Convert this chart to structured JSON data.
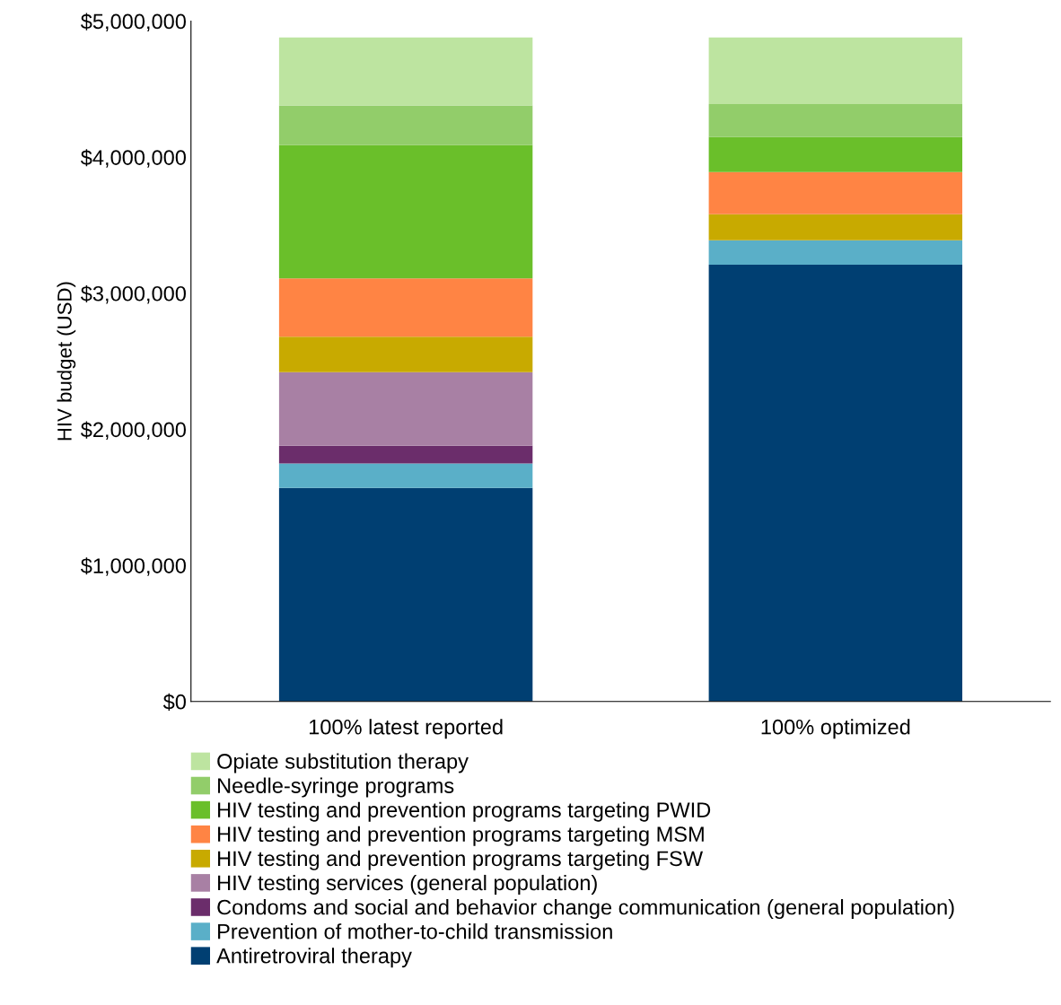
{
  "chart_data": {
    "type": "bar",
    "stacked": true,
    "ylabel": "HIV budget (USD)",
    "categories": [
      "100% latest reported",
      "100% optimized"
    ],
    "ylim": [
      0,
      5000000
    ],
    "yticks": [
      {
        "value": 0,
        "label": "$0"
      },
      {
        "value": 1000000,
        "label": "$1,000,000"
      },
      {
        "value": 2000000,
        "label": "$2,000,000"
      },
      {
        "value": 3000000,
        "label": "$3,000,000"
      },
      {
        "value": 4000000,
        "label": "$4,000,000"
      },
      {
        "value": 5000000,
        "label": "$5,000,000"
      }
    ],
    "grid": false,
    "legend": "bottom",
    "series": [
      {
        "name": "Antiretroviral therapy",
        "color": "#003f72",
        "values": [
          1570000,
          3210000
        ]
      },
      {
        "name": "Prevention of mother-to-child transmission",
        "color": "#5aafc8",
        "values": [
          180000,
          180000
        ]
      },
      {
        "name": "Condoms and social and behavior change communication (general population)",
        "color": "#6b2d6b",
        "values": [
          130000,
          0
        ]
      },
      {
        "name": "HIV testing services (general population)",
        "color": "#a880a4",
        "values": [
          540000,
          0
        ]
      },
      {
        "name": "HIV testing and prevention programs targeting FSW",
        "color": "#c8aa00",
        "values": [
          260000,
          190000
        ]
      },
      {
        "name": "HIV testing and prevention programs targeting MSM",
        "color": "#ff8444",
        "values": [
          430000,
          310000
        ]
      },
      {
        "name": "HIV testing and prevention programs targeting PWID",
        "color": "#6abf2a",
        "values": [
          980000,
          260000
        ]
      },
      {
        "name": "Needle-syringe programs",
        "color": "#92cd6a",
        "values": [
          290000,
          240000
        ]
      },
      {
        "name": "Opiate substitution therapy",
        "color": "#bde4a0",
        "values": [
          500000,
          490000
        ]
      }
    ]
  }
}
